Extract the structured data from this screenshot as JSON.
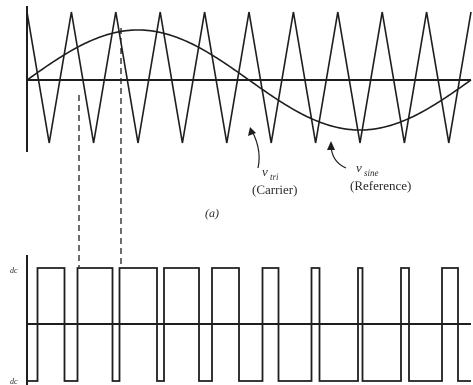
{
  "panel_a": {
    "carrier_label_symbol": "v",
    "carrier_label_subscript": "tri",
    "carrier_label_name": "(Carrier)",
    "reference_label_symbol": "v",
    "reference_label_subscript": "sine",
    "reference_label_name": "(Reference)",
    "caption": "(a)",
    "carrier_periods": 10,
    "reference_periods": 1
  },
  "panel_b": {
    "upper_level_label": "dc",
    "lower_level_label": "dc"
  },
  "colors": {
    "ink": "#1e1e1e",
    "background": "#ffffff"
  }
}
